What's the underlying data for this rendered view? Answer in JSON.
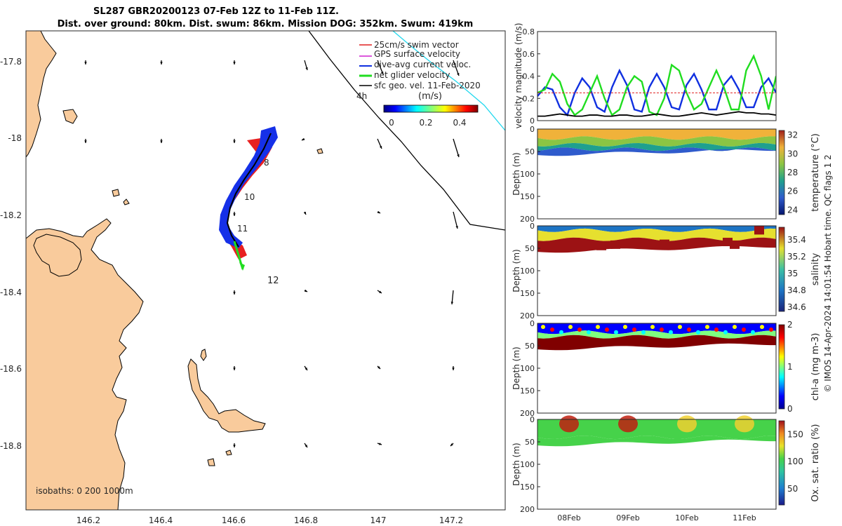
{
  "title": {
    "line1": "SL287 GBR20200123 07-Feb 12Z to 11-Feb 11Z.",
    "line2": "Dist. over ground: 80km. Dist. swum: 86km. Mission DOG: 352km. Swum: 419km"
  },
  "map": {
    "x_ticks": [
      "146.2",
      "146.4",
      "146.6",
      "146.8",
      "147",
      "147.2"
    ],
    "y_ticks": [
      "-17.8",
      "-18",
      "-18.2",
      "-18.4",
      "-18.6",
      "-18.8"
    ],
    "xlim": [
      146.03,
      147.35
    ],
    "ylim": [
      -18.95,
      -17.7
    ],
    "track_day_labels": [
      "8",
      "10",
      "11",
      "12"
    ],
    "legend": [
      {
        "label": "25cm/s swim vector",
        "color": "#e02020"
      },
      {
        "label": "GPS surface velocity",
        "color": "#d020d0"
      },
      {
        "label": "dive-avg current veloc.",
        "color": "#1030e0"
      },
      {
        "label": "net glider velocity",
        "color": "#20dd20"
      },
      {
        "label": "sfc geo. vel. 11-Feb-2020",
        "color": "#000000"
      }
    ],
    "time_step_label": "4h",
    "colorbar": {
      "title": "(m/s)",
      "ticks": [
        "0",
        "0.2",
        "0.4"
      ],
      "range": [
        0,
        0.5
      ]
    },
    "isobaths_label": "isobaths: 0   200  1000m",
    "land_color": "#f9cb9c"
  },
  "panels": {
    "velocity": {
      "ylabel": "velocity magnitude (m/s)",
      "yticks": [
        "0",
        "0.2",
        "0.4",
        "0.6",
        "0.8"
      ],
      "ylim": [
        0,
        0.8
      ],
      "reference_line": 0.25
    },
    "profiles": [
      {
        "name": "temperature",
        "ylabel": "Depth (m)",
        "cbar_label": "temperature (°C)",
        "cbar_ticks": [
          "24",
          "26",
          "28",
          "30",
          "32"
        ],
        "yticks": [
          "0",
          "50",
          "100",
          "150",
          "200"
        ]
      },
      {
        "name": "salinity",
        "ylabel": "Depth (m)",
        "cbar_label": "salinity",
        "cbar_ticks": [
          "34.6",
          "34.8",
          "35",
          "35.2",
          "35.4"
        ],
        "yticks": [
          "0",
          "50",
          "100",
          "150",
          "200"
        ]
      },
      {
        "name": "chla",
        "ylabel": "Depth (m)",
        "cbar_label": "chl-a (mg m-3)",
        "cbar_ticks": [
          "0",
          "1",
          "2"
        ],
        "yticks": [
          "0",
          "50",
          "100",
          "150",
          "200"
        ]
      },
      {
        "name": "oxygen",
        "ylabel": "Depth (m)",
        "cbar_label": "Ox. sat. ratio (%)",
        "cbar_ticks": [
          "50",
          "100",
          "150"
        ],
        "yticks": [
          "0",
          "50",
          "100",
          "150",
          "200"
        ]
      }
    ],
    "x_ticks": [
      "08Feb",
      "09Feb",
      "10Feb",
      "11Feb"
    ]
  },
  "credit": "© IMOS 14-Apr-2024 14:01:54 Hobart time. QC flags 1  2",
  "chart_data": [
    {
      "type": "line",
      "title": "velocity magnitude",
      "xlabel": "",
      "ylabel": "velocity magnitude (m/s)",
      "ylim": [
        0,
        0.8
      ],
      "x_range": [
        "07-Feb 12Z",
        "11-Feb 11Z"
      ],
      "series": [
        {
          "name": "dive-avg current veloc.",
          "color": "#1030e0",
          "values": [
            0.22,
            0.3,
            0.28,
            0.12,
            0.05,
            0.25,
            0.38,
            0.3,
            0.12,
            0.08,
            0.3,
            0.45,
            0.32,
            0.1,
            0.08,
            0.3,
            0.42,
            0.3,
            0.12,
            0.1,
            0.32,
            0.42,
            0.28,
            0.1,
            0.1,
            0.32,
            0.4,
            0.28,
            0.12,
            0.12,
            0.3,
            0.38,
            0.25
          ]
        },
        {
          "name": "net glider velocity",
          "color": "#20dd20",
          "values": [
            0.25,
            0.28,
            0.42,
            0.35,
            0.15,
            0.05,
            0.1,
            0.25,
            0.4,
            0.2,
            0.05,
            0.1,
            0.3,
            0.4,
            0.35,
            0.08,
            0.05,
            0.2,
            0.5,
            0.45,
            0.25,
            0.1,
            0.15,
            0.3,
            0.45,
            0.3,
            0.1,
            0.1,
            0.45,
            0.58,
            0.4,
            0.1,
            0.4
          ]
        },
        {
          "name": "sfc geo. vel.",
          "color": "#000000",
          "values": [
            0.04,
            0.04,
            0.05,
            0.06,
            0.05,
            0.04,
            0.04,
            0.05,
            0.05,
            0.04,
            0.04,
            0.05,
            0.05,
            0.04,
            0.04,
            0.05,
            0.06,
            0.05,
            0.04,
            0.04,
            0.05,
            0.06,
            0.07,
            0.06,
            0.05,
            0.06,
            0.07,
            0.08,
            0.07,
            0.07,
            0.06,
            0.06,
            0.05
          ]
        },
        {
          "name": "25cm/s reference",
          "color": "#e02020",
          "values": [
            0.25,
            0.25
          ]
        }
      ]
    },
    {
      "type": "heatmap",
      "title": "temperature (°C)",
      "ylabel": "Depth (m)",
      "ylim": [
        200,
        0
      ],
      "color_range": [
        23.5,
        32.5
      ],
      "profile_depth_m": [
        45,
        60
      ],
      "layers": [
        {
          "from_m": 0,
          "to_m": 20,
          "value": 30.5
        },
        {
          "from_m": 20,
          "to_m": 35,
          "value": 29.0
        },
        {
          "from_m": 35,
          "to_m": 45,
          "value": 27.5
        },
        {
          "from_m": 45,
          "to_m": 58,
          "value": 26.0
        }
      ]
    },
    {
      "type": "heatmap",
      "title": "salinity",
      "ylabel": "Depth (m)",
      "ylim": [
        200,
        0
      ],
      "color_range": [
        34.55,
        35.55
      ],
      "layers": [
        {
          "from_m": 0,
          "to_m": 10,
          "value": 34.9
        },
        {
          "from_m": 10,
          "to_m": 30,
          "value": 35.2
        },
        {
          "from_m": 30,
          "to_m": 58,
          "value": 35.5
        }
      ]
    },
    {
      "type": "heatmap",
      "title": "chl-a (mg m-3)",
      "ylabel": "Depth (m)",
      "ylim": [
        200,
        0
      ],
      "color_range": [
        0,
        2
      ],
      "layers": [
        {
          "from_m": 0,
          "to_m": 20,
          "value": 0.3
        },
        {
          "from_m": 20,
          "to_m": 30,
          "value": 1.0
        },
        {
          "from_m": 30,
          "to_m": 58,
          "value": 2.0
        }
      ]
    },
    {
      "type": "heatmap",
      "title": "Ox. sat. ratio (%)",
      "ylabel": "Depth (m)",
      "ylim": [
        200,
        0
      ],
      "color_range": [
        20,
        175
      ],
      "layers": [
        {
          "from_m": 0,
          "to_m": 40,
          "value": 105
        },
        {
          "from_m": 40,
          "to_m": 58,
          "value": 95
        }
      ]
    }
  ]
}
